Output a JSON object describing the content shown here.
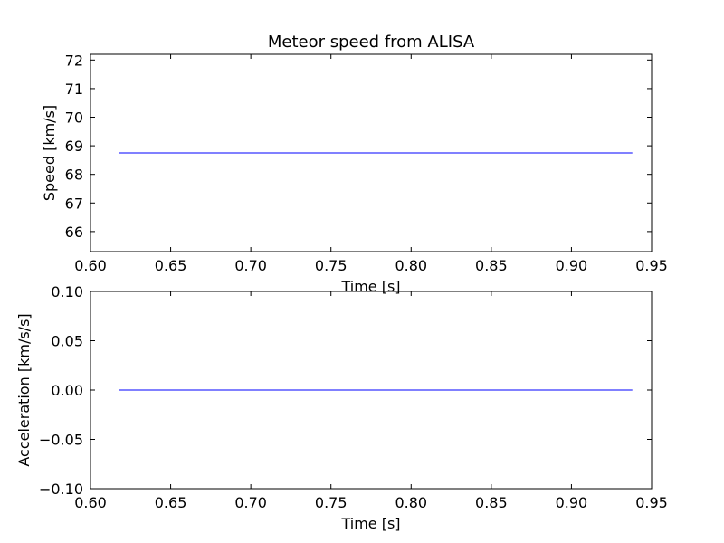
{
  "chart_data": [
    {
      "type": "line",
      "title": "Meteor speed from  ALISA",
      "xlabel": "Time [s]",
      "ylabel": "Speed [km/s]",
      "xlim": [
        0.6,
        0.95
      ],
      "ylim": [
        65.3,
        72.2
      ],
      "xticks": [
        0.6,
        0.65,
        0.7,
        0.75,
        0.8,
        0.85,
        0.9,
        0.95
      ],
      "yticks": [
        66,
        67,
        68,
        69,
        70,
        71,
        72
      ],
      "xtick_labels": [
        "0.60",
        "0.65",
        "0.70",
        "0.75",
        "0.80",
        "0.85",
        "0.90",
        "0.95"
      ],
      "ytick_labels": [
        "66",
        "67",
        "68",
        "69",
        "70",
        "71",
        "72"
      ],
      "grid": false,
      "series": [
        {
          "x": [
            0.618,
            0.938
          ],
          "y": [
            68.75,
            68.75
          ],
          "color": "#0000ff"
        }
      ]
    },
    {
      "type": "line",
      "title": "",
      "xlabel": "Time [s]",
      "ylabel": "Acceleration [km/s/s]",
      "xlim": [
        0.6,
        0.95
      ],
      "ylim": [
        -0.1,
        0.1
      ],
      "xticks": [
        0.6,
        0.65,
        0.7,
        0.75,
        0.8,
        0.85,
        0.9,
        0.95
      ],
      "yticks": [
        -0.1,
        -0.05,
        0.0,
        0.05,
        0.1
      ],
      "xtick_labels": [
        "0.60",
        "0.65",
        "0.70",
        "0.75",
        "0.80",
        "0.85",
        "0.90",
        "0.95"
      ],
      "ytick_labels": [
        "−0.10",
        "−0.05",
        "0.00",
        "0.05",
        "0.10"
      ],
      "grid": false,
      "series": [
        {
          "x": [
            0.618,
            0.938
          ],
          "y": [
            0.0,
            0.0
          ],
          "color": "#0000ff"
        }
      ]
    }
  ]
}
